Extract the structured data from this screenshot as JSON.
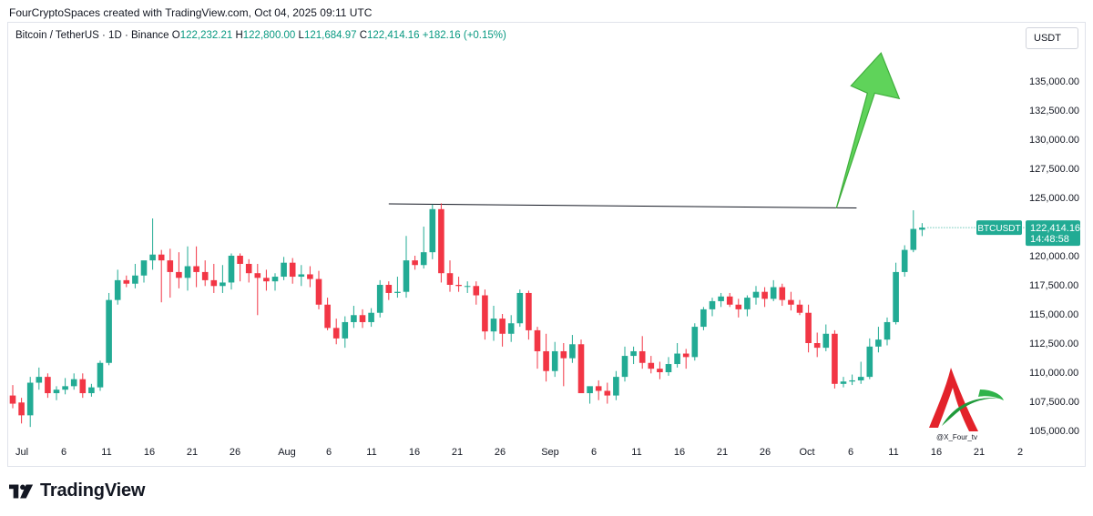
{
  "header": {
    "attribution": "FourCryptoSpaces created with TradingView.com, Oct 04, 2025 09:11 UTC"
  },
  "legend": {
    "symbol": "Bitcoin / TetherUS · 1D · Binance",
    "open_label": "O",
    "open": "122,232.21",
    "high_label": "H",
    "high": "122,800.00",
    "low_label": "L",
    "low": "121,684.97",
    "close_label": "C",
    "close": "122,414.16",
    "change": "+182.16 (+0.15%)"
  },
  "currency_button": "USDT",
  "footer": {
    "brand": "TradingView"
  },
  "watermark": {
    "handle": "@X_Four_tv"
  },
  "colors": {
    "up": "#22ab94",
    "down": "#f23645",
    "price_tag": "#22ab94",
    "arrow": "#5fd35a",
    "resistance_line": "#131722"
  },
  "chart_data": {
    "type": "candlestick",
    "symbol": "BTCUSDT",
    "timeframe": "1D",
    "exchange": "Binance",
    "ylim": [
      104000,
      138500
    ],
    "y_ticks": [
      "135,000.00",
      "132,500.00",
      "130,000.00",
      "127,500.00",
      "125,000.00",
      "120,000.00",
      "117,500.00",
      "115,000.00",
      "112,500.00",
      "110,000.00",
      "107,500.00",
      "105,000.00"
    ],
    "x_tick_labels": [
      "Jul",
      "6",
      "11",
      "16",
      "21",
      "26",
      "Aug",
      "6",
      "11",
      "16",
      "21",
      "26",
      "Sep",
      "6",
      "11",
      "16",
      "21",
      "26",
      "Oct",
      "6",
      "11",
      "16",
      "21",
      "2"
    ],
    "last_price_tag": {
      "symbol": "BTCUSDT",
      "price": "122,414.16",
      "countdown": "14:48:58",
      "value": 122414.16
    },
    "resistance_line": {
      "from": [
        "Aug 13",
        124450
      ],
      "to": [
        "Oct 05",
        124100
      ]
    },
    "projection_arrow": {
      "direction": "up",
      "from_date": "Oct 05",
      "from_price": 124100,
      "to_date": "Oct 08",
      "to_price": 137400
    },
    "candles": [
      {
        "o": 108000,
        "h": 108900,
        "l": 106900,
        "c": 107300
      },
      {
        "o": 107400,
        "h": 107800,
        "l": 105600,
        "c": 106300
      },
      {
        "o": 106300,
        "h": 109600,
        "l": 105300,
        "c": 109100
      },
      {
        "o": 109100,
        "h": 110400,
        "l": 108500,
        "c": 109600
      },
      {
        "o": 109600,
        "h": 109900,
        "l": 107800,
        "c": 108200
      },
      {
        "o": 108200,
        "h": 108800,
        "l": 107600,
        "c": 108500
      },
      {
        "o": 108500,
        "h": 109500,
        "l": 108100,
        "c": 108800
      },
      {
        "o": 108800,
        "h": 109900,
        "l": 108500,
        "c": 109400
      },
      {
        "o": 109400,
        "h": 109900,
        "l": 107800,
        "c": 108200
      },
      {
        "o": 108200,
        "h": 109000,
        "l": 107900,
        "c": 108700
      },
      {
        "o": 108700,
        "h": 111000,
        "l": 108400,
        "c": 110800
      },
      {
        "o": 110800,
        "h": 116800,
        "l": 110600,
        "c": 116200
      },
      {
        "o": 116200,
        "h": 118800,
        "l": 115800,
        "c": 117900
      },
      {
        "o": 117900,
        "h": 118300,
        "l": 117300,
        "c": 117600
      },
      {
        "o": 117600,
        "h": 119300,
        "l": 117200,
        "c": 118300
      },
      {
        "o": 118300,
        "h": 119500,
        "l": 117700,
        "c": 119600
      },
      {
        "o": 119600,
        "h": 123200,
        "l": 118800,
        "c": 120100
      },
      {
        "o": 120100,
        "h": 120500,
        "l": 116000,
        "c": 119600
      },
      {
        "o": 119600,
        "h": 120600,
        "l": 116400,
        "c": 118600
      },
      {
        "o": 118600,
        "h": 120300,
        "l": 117200,
        "c": 118100
      },
      {
        "o": 118100,
        "h": 120800,
        "l": 117000,
        "c": 119100
      },
      {
        "o": 119100,
        "h": 120800,
        "l": 117300,
        "c": 118600
      },
      {
        "o": 118600,
        "h": 119600,
        "l": 117400,
        "c": 117900
      },
      {
        "o": 117900,
        "h": 119300,
        "l": 116800,
        "c": 117400
      },
      {
        "o": 117400,
        "h": 119200,
        "l": 116800,
        "c": 117700
      },
      {
        "o": 117700,
        "h": 120200,
        "l": 117100,
        "c": 120000
      },
      {
        "o": 120000,
        "h": 120200,
        "l": 117800,
        "c": 119300
      },
      {
        "o": 119300,
        "h": 119700,
        "l": 117700,
        "c": 118500
      },
      {
        "o": 118500,
        "h": 119300,
        "l": 114900,
        "c": 118100
      },
      {
        "o": 118100,
        "h": 118800,
        "l": 117000,
        "c": 117800
      },
      {
        "o": 117800,
        "h": 118500,
        "l": 117000,
        "c": 118200
      },
      {
        "o": 118200,
        "h": 119900,
        "l": 117900,
        "c": 119400
      },
      {
        "o": 119400,
        "h": 119800,
        "l": 117600,
        "c": 118200
      },
      {
        "o": 118200,
        "h": 119200,
        "l": 117400,
        "c": 118400
      },
      {
        "o": 118400,
        "h": 119100,
        "l": 117300,
        "c": 118000
      },
      {
        "o": 118000,
        "h": 118700,
        "l": 115400,
        "c": 115800
      },
      {
        "o": 115800,
        "h": 116400,
        "l": 113600,
        "c": 113800
      },
      {
        "o": 113800,
        "h": 114600,
        "l": 112400,
        "c": 112900
      },
      {
        "o": 112900,
        "h": 114800,
        "l": 112100,
        "c": 114300
      },
      {
        "o": 114300,
        "h": 115700,
        "l": 113800,
        "c": 114900
      },
      {
        "o": 114900,
        "h": 115400,
        "l": 113800,
        "c": 114300
      },
      {
        "o": 114300,
        "h": 115500,
        "l": 113900,
        "c": 115100
      },
      {
        "o": 115100,
        "h": 117900,
        "l": 114700,
        "c": 117500
      },
      {
        "o": 117500,
        "h": 117800,
        "l": 116200,
        "c": 116800
      },
      {
        "o": 116800,
        "h": 118200,
        "l": 116400,
        "c": 116900
      },
      {
        "o": 116900,
        "h": 121700,
        "l": 116400,
        "c": 119600
      },
      {
        "o": 119600,
        "h": 120000,
        "l": 118800,
        "c": 119200
      },
      {
        "o": 119200,
        "h": 122500,
        "l": 118900,
        "c": 120300
      },
      {
        "o": 120300,
        "h": 124400,
        "l": 119700,
        "c": 124000
      },
      {
        "o": 124000,
        "h": 124500,
        "l": 117700,
        "c": 118500
      },
      {
        "o": 118500,
        "h": 119600,
        "l": 116900,
        "c": 117500
      },
      {
        "o": 117500,
        "h": 118200,
        "l": 116900,
        "c": 117400
      },
      {
        "o": 117400,
        "h": 117800,
        "l": 116800,
        "c": 117400
      },
      {
        "o": 117400,
        "h": 117800,
        "l": 115800,
        "c": 116600
      },
      {
        "o": 116600,
        "h": 117100,
        "l": 112800,
        "c": 113500
      },
      {
        "o": 113500,
        "h": 115700,
        "l": 112700,
        "c": 114600
      },
      {
        "o": 114600,
        "h": 115000,
        "l": 112200,
        "c": 113300
      },
      {
        "o": 113300,
        "h": 114900,
        "l": 112600,
        "c": 114200
      },
      {
        "o": 114200,
        "h": 117100,
        "l": 113900,
        "c": 116800
      },
      {
        "o": 116800,
        "h": 117000,
        "l": 112800,
        "c": 113600
      },
      {
        "o": 113600,
        "h": 113900,
        "l": 110300,
        "c": 111800
      },
      {
        "o": 111800,
        "h": 113300,
        "l": 109200,
        "c": 110100
      },
      {
        "o": 110100,
        "h": 112600,
        "l": 109600,
        "c": 111800
      },
      {
        "o": 111800,
        "h": 112500,
        "l": 108800,
        "c": 111200
      },
      {
        "o": 111200,
        "h": 113200,
        "l": 110800,
        "c": 112400
      },
      {
        "o": 112400,
        "h": 112800,
        "l": 108400,
        "c": 108200
      },
      {
        "o": 108200,
        "h": 108700,
        "l": 107300,
        "c": 108800
      },
      {
        "o": 108800,
        "h": 109300,
        "l": 107600,
        "c": 108400
      },
      {
        "o": 108400,
        "h": 109100,
        "l": 107300,
        "c": 108000
      },
      {
        "o": 108000,
        "h": 110100,
        "l": 107600,
        "c": 109600
      },
      {
        "o": 109600,
        "h": 112200,
        "l": 109200,
        "c": 111400
      },
      {
        "o": 111400,
        "h": 112200,
        "l": 110700,
        "c": 111800
      },
      {
        "o": 111800,
        "h": 113100,
        "l": 110300,
        "c": 110800
      },
      {
        "o": 110800,
        "h": 111400,
        "l": 109900,
        "c": 110300
      },
      {
        "o": 110300,
        "h": 110900,
        "l": 109400,
        "c": 110000
      },
      {
        "o": 110000,
        "h": 111300,
        "l": 109700,
        "c": 110700
      },
      {
        "o": 110700,
        "h": 112500,
        "l": 110400,
        "c": 111600
      },
      {
        "o": 111600,
        "h": 112000,
        "l": 110300,
        "c": 111300
      },
      {
        "o": 111300,
        "h": 114200,
        "l": 111000,
        "c": 113900
      },
      {
        "o": 113900,
        "h": 115600,
        "l": 113600,
        "c": 115400
      },
      {
        "o": 115400,
        "h": 116400,
        "l": 114800,
        "c": 116100
      },
      {
        "o": 116100,
        "h": 116800,
        "l": 115600,
        "c": 116500
      },
      {
        "o": 116500,
        "h": 116800,
        "l": 115600,
        "c": 115800
      },
      {
        "o": 115800,
        "h": 116300,
        "l": 114700,
        "c": 115400
      },
      {
        "o": 115400,
        "h": 116600,
        "l": 114800,
        "c": 116400
      },
      {
        "o": 116400,
        "h": 117400,
        "l": 115800,
        "c": 116900
      },
      {
        "o": 116900,
        "h": 117300,
        "l": 115600,
        "c": 116300
      },
      {
        "o": 116300,
        "h": 117900,
        "l": 116100,
        "c": 117300
      },
      {
        "o": 117300,
        "h": 117600,
        "l": 115700,
        "c": 116200
      },
      {
        "o": 116200,
        "h": 116900,
        "l": 115300,
        "c": 115800
      },
      {
        "o": 115800,
        "h": 116200,
        "l": 114900,
        "c": 115100
      },
      {
        "o": 115100,
        "h": 115800,
        "l": 111700,
        "c": 112500
      },
      {
        "o": 112500,
        "h": 113400,
        "l": 111300,
        "c": 112100
      },
      {
        "o": 112100,
        "h": 114100,
        "l": 111800,
        "c": 113300
      },
      {
        "o": 113300,
        "h": 113600,
        "l": 108600,
        "c": 109000
      },
      {
        "o": 109000,
        "h": 109600,
        "l": 108700,
        "c": 109200
      },
      {
        "o": 109200,
        "h": 109800,
        "l": 108900,
        "c": 109300
      },
      {
        "o": 109300,
        "h": 110900,
        "l": 109000,
        "c": 109600
      },
      {
        "o": 109600,
        "h": 112900,
        "l": 109400,
        "c": 112200
      },
      {
        "o": 112200,
        "h": 113900,
        "l": 111700,
        "c": 112800
      },
      {
        "o": 112800,
        "h": 114700,
        "l": 112300,
        "c": 114300
      },
      {
        "o": 114300,
        "h": 119400,
        "l": 114100,
        "c": 118600
      },
      {
        "o": 118600,
        "h": 120900,
        "l": 118200,
        "c": 120500
      },
      {
        "o": 120500,
        "h": 123900,
        "l": 120300,
        "c": 122300
      },
      {
        "o": 122232,
        "h": 122800,
        "l": 121685,
        "c": 122414
      }
    ]
  }
}
